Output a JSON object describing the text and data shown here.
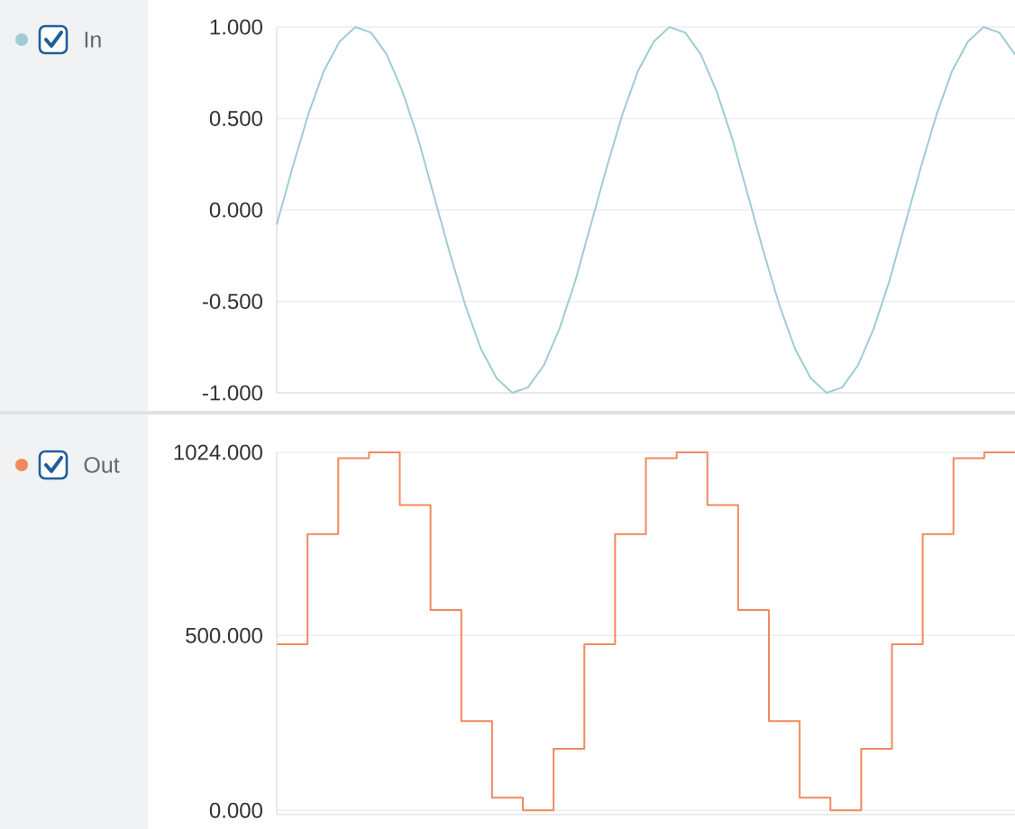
{
  "chart_data": [
    {
      "type": "line",
      "legend": "left",
      "grid": "y",
      "categories": [
        null,
        null,
        null,
        null,
        null,
        null,
        null,
        null,
        null,
        null,
        null,
        null,
        null,
        null,
        null,
        null,
        null,
        null,
        null,
        null,
        null,
        null,
        null,
        null,
        null,
        null,
        null,
        null,
        null,
        null,
        null,
        null,
        null,
        null,
        null,
        null,
        null,
        null,
        null,
        null,
        null,
        null,
        null,
        null,
        null,
        null,
        null,
        null
      ],
      "series": [
        {
          "name": "In",
          "color": "#9fccd5",
          "values": [
            -0.08,
            0.23,
            0.52,
            0.76,
            0.92,
            1.0,
            0.97,
            0.85,
            0.65,
            0.39,
            0.08,
            -0.23,
            -0.52,
            -0.76,
            -0.92,
            -1.0,
            -0.97,
            -0.85,
            -0.65,
            -0.39,
            -0.08,
            0.23,
            0.52,
            0.76,
            0.92,
            1.0,
            0.97,
            0.85,
            0.65,
            0.39,
            0.08,
            -0.23,
            -0.52,
            -0.76,
            -0.92,
            -1.0,
            -0.97,
            -0.85,
            -0.65,
            -0.39,
            -0.08,
            0.23,
            0.52,
            0.76,
            0.92,
            1.0,
            0.97,
            0.85
          ]
        }
      ],
      "ylim": [
        -1.0,
        1.0
      ],
      "yticks": [
        {
          "value": -1.0,
          "label": "-1.000"
        },
        {
          "value": -0.5,
          "label": "-0.500"
        },
        {
          "value": 0,
          "label": "0.000"
        },
        {
          "value": 0.5,
          "label": "0.500"
        },
        {
          "value": 1.0,
          "label": "1.000"
        }
      ]
    },
    {
      "type": "step",
      "legend": "left",
      "grid": "y",
      "categories": [
        null,
        null,
        null,
        null,
        null,
        null,
        null,
        null,
        null,
        null,
        null,
        null,
        null,
        null,
        null,
        null,
        null,
        null,
        null,
        null,
        null,
        null,
        null,
        null,
        null
      ],
      "series": [
        {
          "name": "Out",
          "color": "#f08a5d",
          "values": [
            475,
            475,
            790,
            1007,
            1024,
            873,
            573,
            255,
            36,
            0,
            176,
            475,
            790,
            1007,
            1024,
            873,
            573,
            255,
            36,
            0,
            176,
            475,
            790,
            1007,
            1024
          ]
        }
      ],
      "ylim": [
        -12,
        1024
      ],
      "yticks": [
        {
          "value": 0,
          "label": "0.000"
        },
        {
          "value": 500,
          "label": "500.000"
        },
        {
          "value": 1024,
          "label": "1024.000"
        }
      ]
    }
  ]
}
